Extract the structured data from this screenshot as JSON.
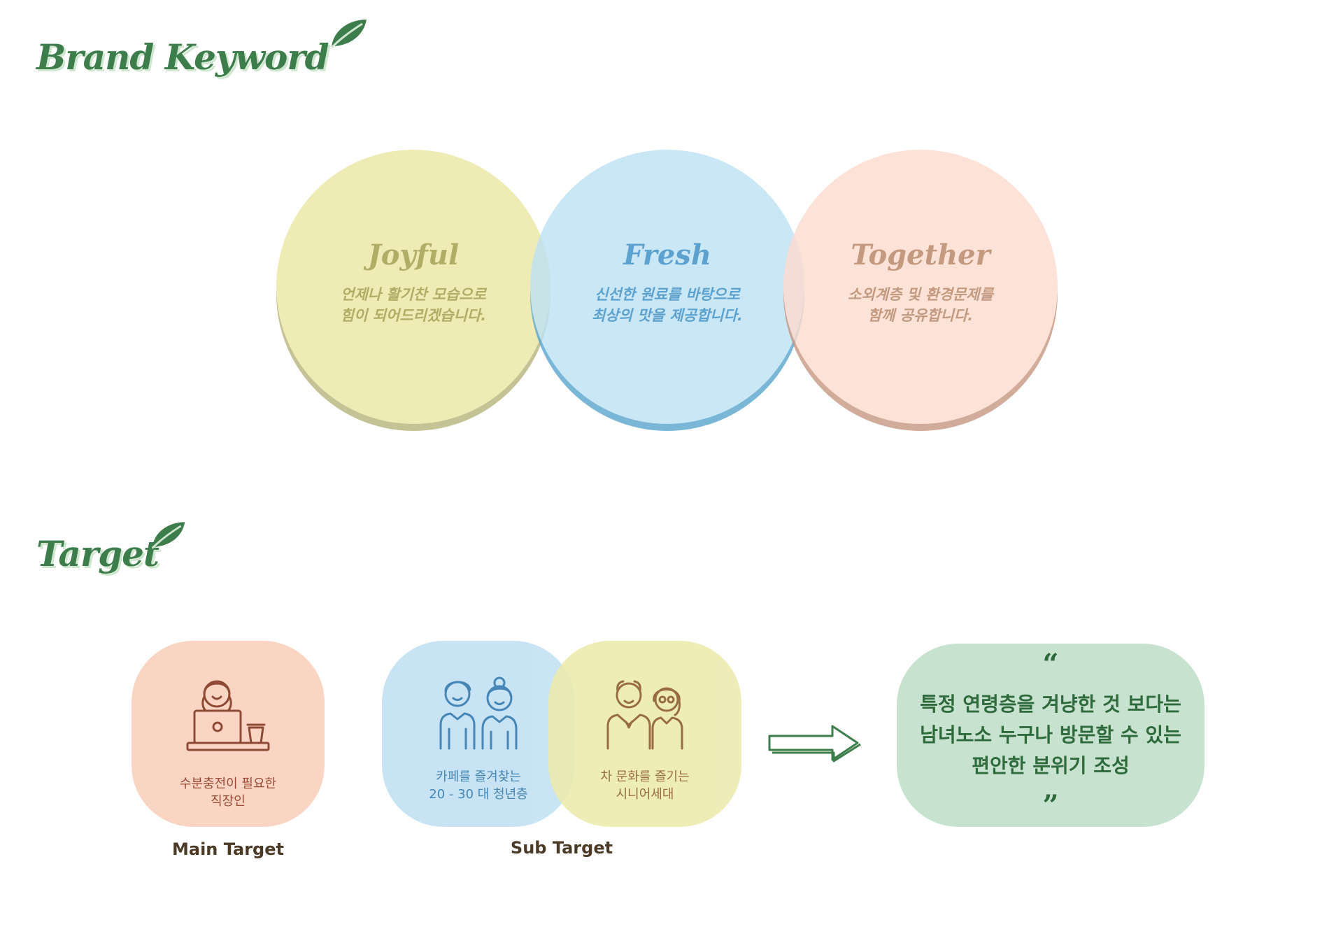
{
  "brand_section": {
    "title": "Brand Keyword",
    "keywords": [
      {
        "word": "Joyful",
        "line1": "언제나 활기찬 모습으로",
        "line2": "힘이 되어드리겠습니다."
      },
      {
        "word": "Fresh",
        "line1": "신선한 원료를 바탕으로",
        "line2": "최상의 맛을 제공합니다."
      },
      {
        "word": "Together",
        "line1": "소외계층 및 환경문제를",
        "line2": "함께 공유합니다."
      }
    ]
  },
  "target_section": {
    "title": "Target",
    "main": {
      "line1": "수분충전이 필요한",
      "line2": "직장인",
      "caption": "Main Target",
      "icon": "office-worker-laptop-icon"
    },
    "sub": [
      {
        "line1": "카페를 즐겨찾는",
        "line2": "20 - 30 대 청년층",
        "icon": "young-couple-icon"
      },
      {
        "line1": "차 문화를 즐기는",
        "line2": "시니어세대",
        "icon": "senior-couple-icon"
      }
    ],
    "sub_caption": "Sub Target",
    "quote": {
      "open": "“",
      "text": "특정 연령층을 겨냥한 것 보다는\n남녀노소 누구나 방문할 수 있는\n편안한 분위기 조성",
      "close": "”"
    }
  },
  "colors": {
    "title_green": "#3d7d4c",
    "joyful": "#ebe7a6",
    "fresh": "#bfe2f4",
    "together": "#fddcd0",
    "quote_bg": "#c7e3cf"
  }
}
